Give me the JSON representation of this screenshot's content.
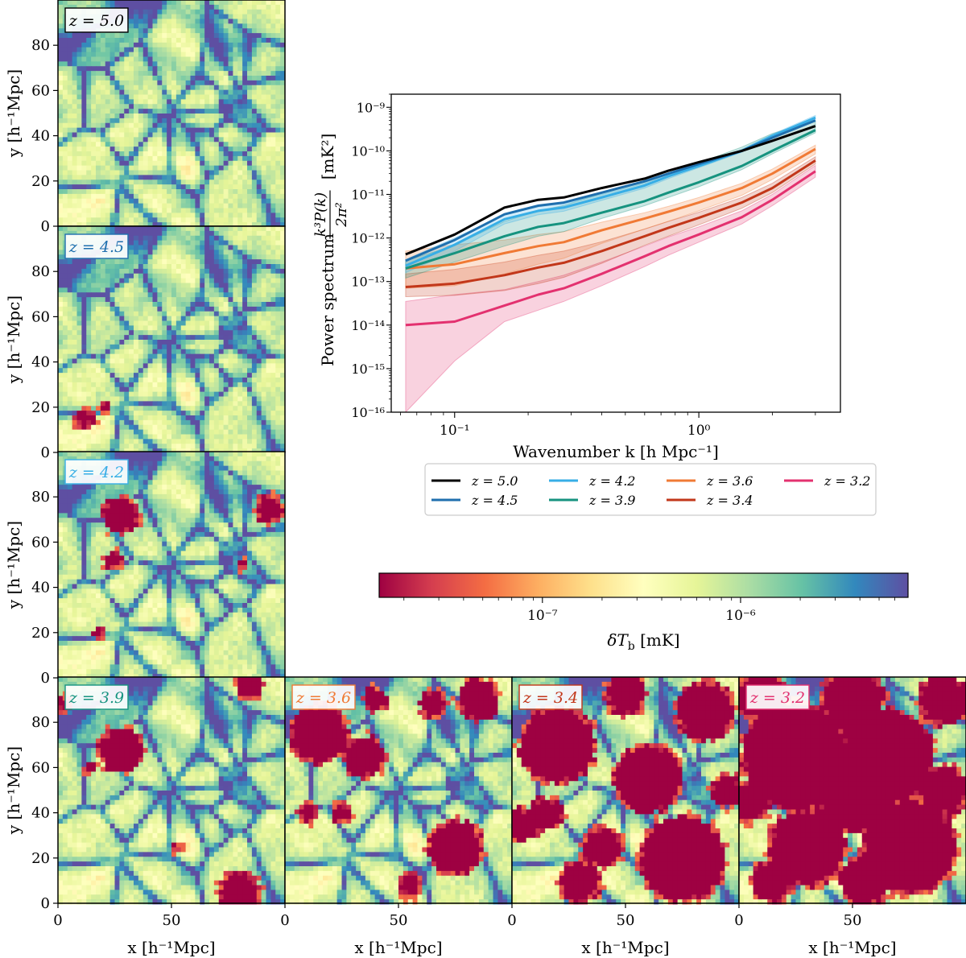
{
  "chart_data": [
    {
      "type": "heatmap",
      "description_role": "21cm brightness temperature maps",
      "panels": [
        {
          "z_label": "z = 5.0",
          "z": 5.0,
          "label_color": "#000000",
          "ionized_regions": []
        },
        {
          "z_label": "z = 4.5",
          "z": 4.5,
          "label_color": "#1f6fae",
          "ionized_regions": [
            [
              22,
              20,
              3
            ],
            [
              12,
              15,
              5
            ]
          ]
        },
        {
          "z_label": "z = 4.2",
          "z": 4.2,
          "label_color": "#37aee6",
          "ionized_regions": [
            [
              28,
              72,
              9
            ],
            [
              24,
              52,
              5
            ],
            [
              93,
              75,
              7
            ],
            [
              18,
              20,
              3
            ],
            [
              82,
              50,
              3
            ]
          ]
        },
        {
          "z_label": "z = 3.9",
          "z": 3.9,
          "label_color": "#16937f",
          "ionized_regions": [
            [
              28,
              68,
              11
            ],
            [
              80,
              5,
              10
            ],
            [
              85,
              97,
              7
            ],
            [
              2,
              88,
              4
            ],
            [
              52,
              25,
              3
            ],
            [
              15,
              60,
              4
            ]
          ]
        },
        {
          "z_label": "z = 3.6",
          "z": 3.6,
          "label_color": "#f07a35",
          "ionized_regions": [
            [
              15,
              75,
              14
            ],
            [
              35,
              65,
              10
            ],
            [
              75,
              25,
              13
            ],
            [
              85,
              90,
              10
            ],
            [
              65,
              88,
              7
            ],
            [
              55,
              8,
              6
            ],
            [
              10,
              40,
              5
            ],
            [
              40,
              90,
              6
            ],
            [
              25,
              40,
              5
            ]
          ]
        },
        {
          "z_label": "z = 3.4",
          "z": 3.4,
          "label_color": "#c2371a",
          "ionized_regions": [
            [
              20,
              70,
              18
            ],
            [
              60,
              55,
              16
            ],
            [
              75,
              20,
              20
            ],
            [
              85,
              85,
              14
            ],
            [
              40,
              25,
              10
            ],
            [
              30,
              10,
              10
            ],
            [
              50,
              92,
              10
            ],
            [
              5,
              35,
              8
            ],
            [
              15,
              40,
              8
            ],
            [
              95,
              50,
              8
            ]
          ]
        },
        {
          "z_label": "z = 3.2",
          "z": 3.2,
          "label_color": "#e3316f",
          "ionized_regions": [
            [
              25,
              65,
              25
            ],
            [
              65,
              65,
              22
            ],
            [
              75,
              25,
              22
            ],
            [
              30,
              25,
              18
            ],
            [
              50,
              90,
              15
            ],
            [
              10,
              92,
              12
            ],
            [
              90,
              90,
              12
            ],
            [
              50,
              45,
              15
            ],
            [
              5,
              45,
              10
            ],
            [
              90,
              50,
              12
            ],
            [
              15,
              10,
              10
            ],
            [
              55,
              10,
              12
            ]
          ]
        }
      ],
      "x_axis": {
        "label": "x [h⁻¹Mpc]",
        "ticks": [
          0,
          50
        ],
        "range": [
          0,
          100
        ]
      },
      "y_axis": {
        "label": "y [h⁻¹Mpc]",
        "ticks": [
          0,
          20,
          40,
          60,
          80
        ],
        "range": [
          0,
          100
        ]
      }
    },
    {
      "type": "line",
      "xscale": "log",
      "yscale": "log",
      "xlabel": "Wavenumber k [h Mpc⁻¹]",
      "ylabel_prefix": "Power spectrum",
      "ylabel_fraction_num": "k³P(k)",
      "ylabel_fraction_den": "2π²",
      "ylabel_units": "[mK²]",
      "xlim": [
        0.055,
        3.8
      ],
      "ylim": [
        1e-16,
        2e-09
      ],
      "xticks": [
        {
          "value": 0.1,
          "label": "10⁻¹"
        },
        {
          "value": 1,
          "label": "10⁰"
        }
      ],
      "yticks": [
        {
          "value": 1e-16,
          "label": "10⁻¹⁶"
        },
        {
          "value": 1e-15,
          "label": "10⁻¹⁵"
        },
        {
          "value": 1e-14,
          "label": "10⁻¹⁴"
        },
        {
          "value": 1e-13,
          "label": "10⁻¹³"
        },
        {
          "value": 1e-12,
          "label": "10⁻¹²"
        },
        {
          "value": 1e-11,
          "label": "10⁻¹¹"
        },
        {
          "value": 1e-10,
          "label": "10⁻¹⁰"
        },
        {
          "value": 1e-09,
          "label": "10⁻⁹"
        }
      ],
      "x": [
        0.063,
        0.1,
        0.16,
        0.22,
        0.28,
        0.4,
        0.6,
        0.75,
        1.0,
        1.5,
        2.0,
        3.0
      ],
      "series": [
        {
          "name": "z = 5.0",
          "color": "#000000",
          "values": [
            4.2e-13,
            1.2e-12,
            5e-12,
            7.5e-12,
            8.5e-12,
            1.4e-11,
            2.3e-11,
            3.5e-11,
            5.5e-11,
            1e-10,
            1.7e-10,
            3.7e-10
          ],
          "band": null
        },
        {
          "name": "z = 4.5",
          "color": "#1f6fae",
          "values": [
            3e-13,
            9e-13,
            3.5e-12,
            5.5e-12,
            6.5e-12,
            1.1e-11,
            2e-11,
            3e-11,
            5e-11,
            1e-10,
            2e-10,
            5e-10
          ],
          "band": null
        },
        {
          "name": "z = 4.2",
          "color": "#37aee6",
          "values": [
            2.3e-13,
            7e-13,
            2.7e-12,
            4.2e-12,
            5e-12,
            8.5e-12,
            1.6e-11,
            2.6e-11,
            4.5e-11,
            1e-10,
            2.2e-10,
            5.8e-10
          ],
          "band": [
            [
              1.6e-13,
              3.2e-13
            ],
            [
              5e-13,
              1e-12
            ],
            [
              2.1e-12,
              3.4e-12
            ],
            [
              3.4e-12,
              5.2e-12
            ],
            [
              4.1e-12,
              6.1e-12
            ],
            [
              7.3e-12,
              1e-11
            ],
            [
              1.4e-11,
              1.8e-11
            ],
            [
              2.3e-11,
              2.9e-11
            ],
            [
              4.1e-11,
              5e-11
            ],
            [
              9.3e-11,
              1.08e-10
            ],
            [
              2.05e-10,
              2.4e-10
            ],
            [
              5.3e-10,
              6.5e-10
            ]
          ]
        },
        {
          "name": "z = 3.9",
          "color": "#16937f",
          "values": [
            2e-13,
            4.5e-13,
            1.1e-12,
            1.8e-12,
            2.2e-12,
            3.8e-12,
            7e-12,
            1.1e-11,
            1.9e-11,
            4.5e-11,
            1e-10,
            3e-10
          ],
          "band": [
            [
              1.2e-13,
              3e-13
            ],
            [
              2.8e-13,
              6.8e-13
            ],
            [
              6.5e-13,
              2.4e-12
            ],
            [
              1.1e-12,
              4.2e-12
            ],
            [
              1.4e-12,
              5.6e-12
            ],
            [
              2.8e-12,
              1.05e-11
            ],
            [
              5.5e-12,
              1.9e-11
            ],
            [
              8.5e-12,
              3.1e-11
            ],
            [
              1.5e-11,
              5.3e-11
            ],
            [
              3.7e-11,
              1.22e-10
            ],
            [
              8.5e-11,
              2.5e-10
            ],
            [
              2.6e-10,
              5e-10
            ]
          ]
        },
        {
          "name": "z = 3.6",
          "color": "#f07a35",
          "values": [
            2e-13,
            2.5e-13,
            4.5e-13,
            6.5e-13,
            8e-13,
            1.5e-12,
            2.8e-12,
            4e-12,
            6.5e-12,
            1.4e-11,
            3e-11,
            1.1e-10
          ],
          "band": [
            [
              7e-14,
              5e-13
            ],
            [
              8e-14,
              7e-13
            ],
            [
              1.5e-13,
              9e-13
            ],
            [
              2.5e-13,
              1.2e-12
            ],
            [
              3.4e-13,
              1.4e-12
            ],
            [
              7.5e-13,
              2.3e-12
            ],
            [
              1.6e-12,
              3.8e-12
            ],
            [
              2.4e-12,
              5.3e-12
            ],
            [
              4.2e-12,
              8.5e-12
            ],
            [
              9.5e-12,
              1.8e-11
            ],
            [
              2.2e-11,
              3.8e-11
            ],
            [
              8.5e-11,
              1.35e-10
            ]
          ]
        },
        {
          "name": "z = 3.4",
          "color": "#c2371a",
          "values": [
            7.5e-14,
            9e-14,
            1.4e-13,
            2.1e-13,
            2.7e-13,
            5e-13,
            1.1e-12,
            1.7e-12,
            2.9e-12,
            6.5e-12,
            1.4e-11,
            6e-11
          ],
          "band": [
            [
              4.5e-14,
              1.5e-13
            ],
            [
              4.8e-14,
              1.9e-13
            ],
            [
              6.2e-14,
              2.8e-13
            ],
            [
              9e-14,
              4e-13
            ],
            [
              1.25e-13,
              5e-13
            ],
            [
              2.6e-13,
              8.2e-13
            ],
            [
              6.8e-13,
              1.6e-12
            ],
            [
              1.1e-12,
              2.4e-12
            ],
            [
              2e-12,
              3.9e-12
            ],
            [
              4.8e-12,
              8.5e-12
            ],
            [
              1.1e-11,
              1.8e-11
            ],
            [
              5e-11,
              7.3e-11
            ]
          ]
        },
        {
          "name": "z = 3.2",
          "color": "#e3316f",
          "values": [
            1e-14,
            1.2e-14,
            2.8e-14,
            5e-14,
            7e-14,
            1.5e-13,
            3.8e-13,
            6.5e-13,
            1.2e-12,
            3e-12,
            7.5e-12,
            3.4e-11
          ],
          "band": [
            [
              1e-16,
              3.5e-14
            ],
            [
              1.5e-15,
              5e-14
            ],
            [
              1.2e-14,
              6.5e-14
            ],
            [
              2.2e-14,
              1e-13
            ],
            [
              3.5e-14,
              1.4e-13
            ],
            [
              8e-14,
              2.8e-13
            ],
            [
              2.2e-13,
              6.5e-13
            ],
            [
              4e-13,
              1.05e-12
            ],
            [
              8e-13,
              1.8e-12
            ],
            [
              2.1e-12,
              4.2e-12
            ],
            [
              5.5e-12,
              1e-11
            ],
            [
              2.5e-11,
              4.6e-11
            ]
          ]
        }
      ],
      "legend": {
        "placement": "below plot",
        "columns": 4
      }
    },
    {
      "type": "colorbar",
      "label": "δT_b [mK]",
      "label_main": "δT",
      "label_sub": "b",
      "label_units": "[mK]",
      "scale": "log",
      "range": [
        1.5e-08,
        7e-06
      ],
      "ticks": [
        {
          "value": 1e-07,
          "label": "10⁻⁷"
        },
        {
          "value": 1e-06,
          "label": "10⁻⁶"
        }
      ],
      "colors": [
        "#9e0142",
        "#d53e4f",
        "#f46d43",
        "#fdae61",
        "#fee08b",
        "#ffffbf",
        "#e6f598",
        "#abdda4",
        "#66c2a5",
        "#3288bd",
        "#5e4fa2"
      ]
    }
  ]
}
